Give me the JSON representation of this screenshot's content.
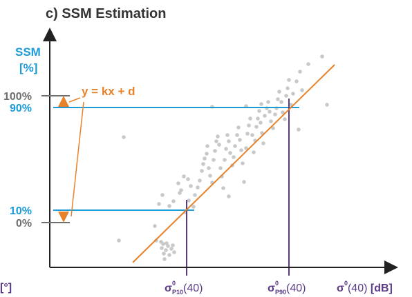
{
  "title": "c) SSM Estimation",
  "colors": {
    "blue": "#1a9bd7",
    "orange": "#e8822a",
    "gray": "#6e6e6e",
    "purple": "#5b3a86",
    "points": "#c8c8c8",
    "axis": "#222222"
  },
  "y_axis": {
    "label_line1": "SSM",
    "label_line2": "[%]",
    "ticks": {
      "t100": "100%",
      "t90": "90%",
      "t10": "10%",
      "t0": "0%"
    }
  },
  "x_axis": {
    "left_fragment": "[°]",
    "p10": {
      "sigma": "σ",
      "sup": "0",
      "sub": "P10",
      "arg": "(40)"
    },
    "p90": {
      "sigma": "σ",
      "sup": "0",
      "sub": "P90",
      "arg": "(40)"
    },
    "main": {
      "sigma": "σ",
      "sup": "0",
      "arg": "(40) ",
      "unit": "[dB]"
    }
  },
  "equation": "y = kx + d",
  "scatter_points": [
    [
      172,
      349
    ],
    [
      179,
      199
    ],
    [
      224,
      328
    ],
    [
      226,
      349
    ],
    [
      230,
      296
    ],
    [
      233,
      351
    ],
    [
      234,
      360
    ],
    [
      236,
      354
    ],
    [
      237,
      368
    ],
    [
      238,
      376
    ],
    [
      240,
      363
    ],
    [
      241,
      353
    ],
    [
      243,
      357
    ],
    [
      245,
      370
    ],
    [
      248,
      361
    ],
    [
      250,
      356
    ],
    [
      252,
      366
    ],
    [
      235,
      283
    ],
    [
      245,
      299
    ],
    [
      251,
      292
    ],
    [
      260,
      280
    ],
    [
      262,
      276
    ],
    [
      258,
      266
    ],
    [
      266,
      256
    ],
    [
      272,
      260
    ],
    [
      276,
      270
    ],
    [
      280,
      300
    ],
    [
      268,
      308
    ],
    [
      273,
      291
    ],
    [
      282,
      283
    ],
    [
      286,
      272
    ],
    [
      289,
      262
    ],
    [
      292,
      248
    ],
    [
      294,
      238
    ],
    [
      296,
      230
    ],
    [
      299,
      223
    ],
    [
      300,
      212
    ],
    [
      302,
      244
    ],
    [
      304,
      255
    ],
    [
      307,
      265
    ],
    [
      309,
      232
    ],
    [
      311,
      219
    ],
    [
      313,
      205
    ],
    [
      315,
      198
    ],
    [
      317,
      210
    ],
    [
      319,
      244
    ],
    [
      321,
      256
    ],
    [
      323,
      273
    ],
    [
      325,
      232
    ],
    [
      327,
      216
    ],
    [
      329,
      196
    ],
    [
      331,
      205
    ],
    [
      333,
      222
    ],
    [
      336,
      240
    ],
    [
      338,
      228
    ],
    [
      340,
      212
    ],
    [
      343,
      196
    ],
    [
      345,
      185
    ],
    [
      347,
      203
    ],
    [
      349,
      218
    ],
    [
      351,
      237
    ],
    [
      353,
      264
    ],
    [
      356,
      215
    ],
    [
      358,
      194
    ],
    [
      360,
      182
    ],
    [
      362,
      172
    ],
    [
      365,
      196
    ],
    [
      367,
      221
    ],
    [
      369,
      204
    ],
    [
      371,
      184
    ],
    [
      373,
      172
    ],
    [
      375,
      161
    ],
    [
      377,
      178
    ],
    [
      379,
      193
    ],
    [
      381,
      208
    ],
    [
      383,
      168
    ],
    [
      386,
      157
    ],
    [
      388,
      148
    ],
    [
      390,
      162
    ],
    [
      392,
      176
    ],
    [
      395,
      186
    ],
    [
      398,
      166
    ],
    [
      400,
      157
    ],
    [
      402,
      144
    ],
    [
      404,
      133
    ],
    [
      407,
      148
    ],
    [
      409,
      163
    ],
    [
      412,
      173
    ],
    [
      414,
      139
    ],
    [
      416,
      128
    ],
    [
      418,
      116
    ],
    [
      421,
      152
    ],
    [
      424,
      136
    ],
    [
      429,
      118
    ],
    [
      432,
      188
    ],
    [
      434,
      104
    ],
    [
      437,
      131
    ],
    [
      446,
      93
    ],
    [
      466,
      82
    ],
    [
      473,
      152
    ],
    [
      307,
      155
    ],
    [
      331,
      285
    ],
    [
      356,
      154
    ],
    [
      378,
      151
    ]
  ]
}
